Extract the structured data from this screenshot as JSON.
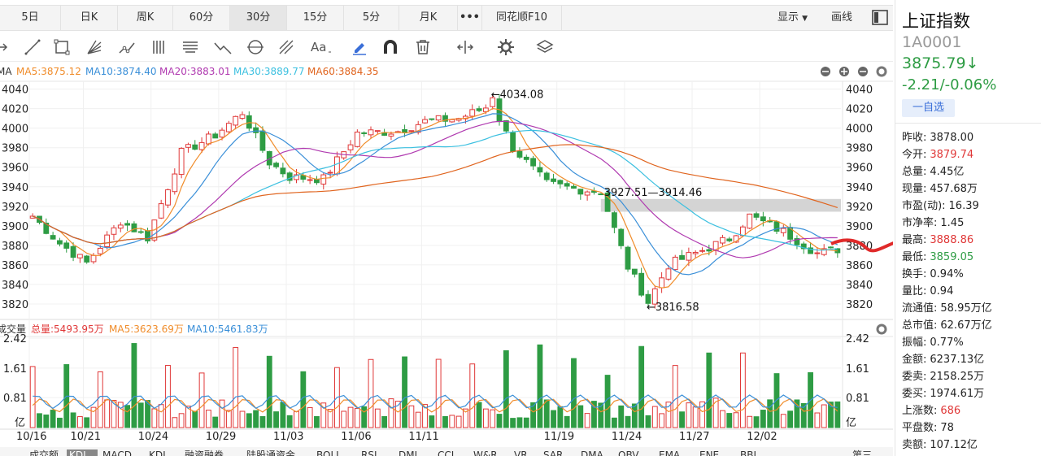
{
  "period_tabs": [
    "5日",
    "日K",
    "周K",
    "60分",
    "30分",
    "15分",
    "5分",
    "月K",
    "•••",
    "同花顺F10"
  ],
  "active_tab": "30分",
  "display_label": "显示",
  "draw_label": "画线",
  "stock": {
    "name": "上证指数",
    "code": "1A0001",
    "price": "3875.79↓",
    "change": "-2.21/-0.06%",
    "watch_button": "一自选"
  },
  "stats": [
    {
      "label": "昨收:",
      "value": "3878.00",
      "color": "#222222"
    },
    {
      "label": "今开:",
      "value": "3879.74",
      "color": "#e03838"
    },
    {
      "label": "总量:",
      "value": "4.45亿",
      "color": "#222222"
    },
    {
      "label": "现量:",
      "value": "457.68万",
      "color": "#222222"
    },
    {
      "label": "市盈(动):",
      "value": "16.39",
      "color": "#222222"
    },
    {
      "label": "市净率:",
      "value": "1.45",
      "color": "#222222"
    },
    {
      "label": "最高:",
      "value": "3888.86",
      "color": "#e03838"
    },
    {
      "label": "最低:",
      "value": "3859.05",
      "color": "#2e9c44"
    },
    {
      "label": "换手:",
      "value": "0.94%",
      "color": "#222222"
    },
    {
      "label": "量比:",
      "value": "0.94",
      "color": "#222222"
    },
    {
      "label": "流通值:",
      "value": "58.95万亿",
      "color": "#222222"
    },
    {
      "label": "总市值:",
      "value": "62.67万亿",
      "color": "#222222"
    },
    {
      "label": "振幅:",
      "value": "0.77%",
      "color": "#222222"
    },
    {
      "label": "金额:",
      "value": "6237.13亿",
      "color": "#222222"
    },
    {
      "label": "委卖:",
      "value": "2158.25万",
      "color": "#222222"
    },
    {
      "label": "委买:",
      "value": "1974.61万",
      "color": "#222222"
    },
    {
      "label": "上涨数:",
      "value": "686",
      "color": "#e03838"
    },
    {
      "label": "平盘数:",
      "value": "78",
      "color": "#222222"
    },
    {
      "label": "卖额:",
      "value": "107.12亿",
      "color": "#222222"
    }
  ],
  "bottom_indicators": [
    "成交额",
    "KDJ",
    "MACD",
    "KDJ",
    "融资融券",
    "陆股通资金",
    "BOLL",
    "RSI",
    "DMI",
    "CCI",
    "W&R",
    "VR",
    "SAR",
    "DMA",
    "OBV",
    "EMA",
    "ENE",
    "BBI"
  ],
  "bottom_right_label": "第三",
  "chart_data": {
    "type": "candlestick",
    "ma_legend": [
      {
        "name": "MA",
        "value": "",
        "color": "#333333"
      },
      {
        "name": "MA5",
        "value": "3875.12",
        "color": "#f08c2a"
      },
      {
        "name": "MA10",
        "value": "3874.40",
        "color": "#3a8fd8"
      },
      {
        "name": "MA20",
        "value": "3883.01",
        "color": "#b03ab0"
      },
      {
        "name": "MA30",
        "value": "3889.77",
        "color": "#3cc0e0"
      },
      {
        "name": "MA60",
        "value": "3884.35",
        "color": "#e0641e"
      }
    ],
    "price_ticks": [
      4040,
      4020,
      4000,
      3980,
      3960,
      3940,
      3920,
      3900,
      3880,
      3860,
      3840,
      3820
    ],
    "price_range": [
      3805,
      4048
    ],
    "x_labels": [
      "10/16",
      "10/21",
      "10/24",
      "10/29",
      "11/03",
      "11/06",
      "11/11",
      "11/19",
      "11/24",
      "11/27",
      "12/02"
    ],
    "x_label_pos": [
      0,
      8,
      18,
      28,
      38,
      48,
      58,
      78,
      88,
      98,
      108
    ],
    "n_bars": 120,
    "key_points": [
      {
        "i": 0,
        "v": 3910
      },
      {
        "i": 4,
        "v": 3882
      },
      {
        "i": 8,
        "v": 3862
      },
      {
        "i": 13,
        "v": 3905
      },
      {
        "i": 17,
        "v": 3888
      },
      {
        "i": 22,
        "v": 3975
      },
      {
        "i": 27,
        "v": 3993
      },
      {
        "i": 31,
        "v": 4016
      },
      {
        "i": 35,
        "v": 3965
      },
      {
        "i": 38,
        "v": 3950
      },
      {
        "i": 43,
        "v": 3948
      },
      {
        "i": 48,
        "v": 3995
      },
      {
        "i": 54,
        "v": 3997
      },
      {
        "i": 58,
        "v": 4007
      },
      {
        "i": 63,
        "v": 4010
      },
      {
        "i": 68,
        "v": 4024
      },
      {
        "i": 71,
        "v": 3980
      },
      {
        "i": 76,
        "v": 3943
      },
      {
        "i": 80,
        "v": 3938
      },
      {
        "i": 84,
        "v": 3935
      },
      {
        "i": 88,
        "v": 3858
      },
      {
        "i": 91,
        "v": 3822
      },
      {
        "i": 94,
        "v": 3860
      },
      {
        "i": 98,
        "v": 3872
      },
      {
        "i": 103,
        "v": 3887
      },
      {
        "i": 106,
        "v": 3910
      },
      {
        "i": 111,
        "v": 3894
      },
      {
        "i": 116,
        "v": 3872
      },
      {
        "i": 119,
        "v": 3876
      }
    ],
    "annotations": {
      "high": "←4034.08",
      "low": "←3816.58",
      "gap": "3927.51—3914.46",
      "gap_range": [
        3914.46,
        3927.51
      ],
      "high_value": 4034.08,
      "low_value": 3816.58
    },
    "volume_legend": [
      {
        "name": "成交量",
        "value": "",
        "color": "#333333"
      },
      {
        "name": "总量",
        "value": "5493.95万",
        "color": "#e03838"
      },
      {
        "name": "MA5",
        "value": "3623.69万",
        "color": "#f08c2a"
      },
      {
        "name": "MA10",
        "value": "5461.83万",
        "color": "#3a8fd8"
      }
    ],
    "volume_ticks": [
      "2.42",
      "1.61",
      "0.81",
      "亿"
    ],
    "volume_max": 2.42
  }
}
